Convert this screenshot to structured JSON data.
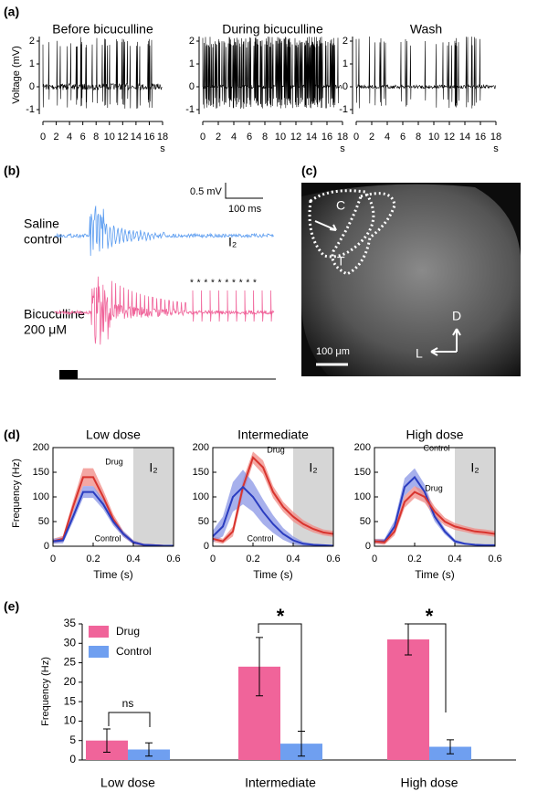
{
  "panels": {
    "a": {
      "label": "(a)",
      "ylabel": "Voltage (mV)",
      "ylim": [
        -1.2,
        2.2
      ],
      "yticks": [
        -1,
        0,
        1,
        2
      ],
      "xlim": [
        0,
        18
      ],
      "xticks": [
        0,
        2,
        4,
        6,
        8,
        10,
        12,
        14,
        16,
        18
      ],
      "xunit": "s",
      "titles": [
        "Before bicuculline",
        "During bicuculline",
        "Wash"
      ]
    },
    "b": {
      "label": "(b)",
      "saline": [
        "Saline",
        "control"
      ],
      "bicuculline": [
        "Bicuculline",
        "200 μM"
      ],
      "saline_color": "#5b9cf0",
      "bicuculline_color": "#f0649a",
      "scale_v": "0.5 mV",
      "scale_t": "100 ms",
      "region": "I₂",
      "stars": "* * * * * * * * * *"
    },
    "c": {
      "label": "(c)",
      "regions": [
        "C",
        "T"
      ],
      "axes": [
        "D",
        "L"
      ],
      "scale": "100 μm"
    },
    "d": {
      "label": "(d)"
    },
    "e": {
      "label": "(e)"
    }
  },
  "chart_data": [
    {
      "type": "line",
      "title": "Low dose",
      "xlabel": "Time (s)",
      "ylabel": "Frequency (Hz)",
      "xlim": [
        0,
        0.6
      ],
      "xticks": [
        0,
        0.2,
        0.4,
        0.6
      ],
      "ylim": [
        0,
        200
      ],
      "yticks": [
        0,
        50,
        100,
        150,
        200
      ],
      "shaded": [
        0.4,
        0.6
      ],
      "shaded_label": "I₂",
      "x": [
        0,
        0.05,
        0.1,
        0.15,
        0.2,
        0.25,
        0.3,
        0.35,
        0.4,
        0.45,
        0.5,
        0.55,
        0.6
      ],
      "series": [
        {
          "name": "Drug",
          "color": "#d8342e",
          "band_color": "#f08a84",
          "values": [
            10,
            15,
            80,
            140,
            140,
            100,
            55,
            25,
            8,
            3,
            2,
            1,
            1
          ],
          "error": [
            5,
            6,
            12,
            18,
            18,
            14,
            10,
            6,
            4,
            2,
            1,
            1,
            1
          ]
        },
        {
          "name": "Control",
          "color": "#2a3cc0",
          "band_color": "#8a96e6",
          "values": [
            10,
            12,
            60,
            110,
            110,
            85,
            50,
            25,
            8,
            3,
            2,
            1,
            1
          ],
          "error": [
            5,
            6,
            10,
            12,
            12,
            10,
            8,
            6,
            4,
            2,
            1,
            1,
            1
          ]
        }
      ]
    },
    {
      "type": "line",
      "title": "Intermediate",
      "xlabel": "Time (s)",
      "ylabel": "Frequency (Hz)",
      "xlim": [
        0,
        0.6
      ],
      "xticks": [
        0,
        0.2,
        0.4,
        0.6
      ],
      "ylim": [
        0,
        200
      ],
      "yticks": [
        0,
        50,
        100,
        150,
        200
      ],
      "shaded": [
        0.4,
        0.6
      ],
      "shaded_label": "I₂",
      "x": [
        0,
        0.05,
        0.1,
        0.15,
        0.2,
        0.25,
        0.3,
        0.35,
        0.4,
        0.45,
        0.5,
        0.55,
        0.6
      ],
      "series": [
        {
          "name": "Drug",
          "color": "#d8342e",
          "band_color": "#f08a84",
          "values": [
            15,
            10,
            30,
            120,
            180,
            160,
            110,
            80,
            60,
            45,
            35,
            28,
            25
          ],
          "error": [
            6,
            5,
            10,
            15,
            12,
            14,
            12,
            10,
            10,
            8,
            7,
            6,
            6
          ]
        },
        {
          "name": "Control",
          "color": "#2a3cc0",
          "band_color": "#8a96e6",
          "values": [
            20,
            40,
            100,
            120,
            100,
            70,
            45,
            25,
            12,
            5,
            3,
            2,
            1
          ],
          "error": [
            12,
            20,
            30,
            35,
            30,
            25,
            18,
            12,
            8,
            4,
            2,
            1,
            1
          ]
        }
      ]
    },
    {
      "type": "line",
      "title": "High dose",
      "xlabel": "Time (s)",
      "ylabel": "Frequency (Hz)",
      "xlim": [
        0,
        0.6
      ],
      "xticks": [
        0,
        0.2,
        0.4,
        0.6
      ],
      "ylim": [
        0,
        200
      ],
      "yticks": [
        0,
        50,
        100,
        150,
        200
      ],
      "shaded": [
        0.4,
        0.6
      ],
      "shaded_label": "I₂",
      "x": [
        0,
        0.05,
        0.1,
        0.15,
        0.2,
        0.25,
        0.3,
        0.35,
        0.4,
        0.45,
        0.5,
        0.55,
        0.6
      ],
      "series": [
        {
          "name": "Control",
          "color": "#2a3cc0",
          "band_color": "#8a96e6",
          "values": [
            10,
            10,
            40,
            120,
            140,
            110,
            60,
            30,
            10,
            5,
            3,
            2,
            2
          ],
          "error": [
            5,
            5,
            12,
            18,
            18,
            15,
            10,
            6,
            4,
            2,
            1,
            1,
            1
          ]
        },
        {
          "name": "Drug",
          "color": "#d8342e",
          "band_color": "#f08a84",
          "values": [
            10,
            8,
            30,
            90,
            110,
            100,
            70,
            50,
            40,
            35,
            30,
            28,
            25
          ],
          "error": [
            5,
            5,
            8,
            12,
            12,
            12,
            10,
            8,
            7,
            6,
            6,
            6,
            6
          ]
        }
      ]
    },
    {
      "type": "bar",
      "ylabel": "Frequency (Hz)",
      "ylim": [
        0,
        35
      ],
      "yticks": [
        0,
        5,
        10,
        15,
        20,
        25,
        30,
        35
      ],
      "categories": [
        "Low dose",
        "Intermediate",
        "High dose"
      ],
      "series": [
        {
          "name": "Drug",
          "color": "#f0649a",
          "values": [
            5,
            24,
            31
          ],
          "error": [
            3,
            7.5,
            4
          ]
        },
        {
          "name": "Control",
          "color": "#6f9ff0",
          "values": [
            2.7,
            4.2,
            3.4
          ],
          "error": [
            1.7,
            3.2,
            1.8
          ]
        }
      ],
      "annotations": [
        "ns",
        "*",
        "*"
      ]
    }
  ]
}
